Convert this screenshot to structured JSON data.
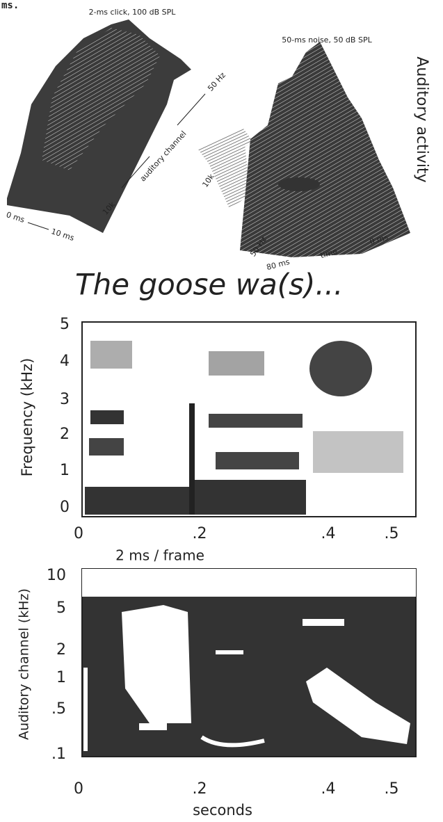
{
  "header": {
    "fragment": "ms."
  },
  "click_plot": {
    "title": "2-ms click, 100 dB SPL",
    "channel_label": "auditory channel",
    "channel_high": "50 Hz",
    "channel_low": "10k",
    "time_start": "0 ms",
    "time_end": "10 ms"
  },
  "noise_plot": {
    "title": "50-ms noise, 50 dB SPL",
    "channel_low": "10k",
    "channel_high": "50 Hz",
    "time_start": "80 ms",
    "time_label": "time",
    "time_end": "0 ms"
  },
  "side_label": "Auditory activity",
  "utterance": "The goose wa(s)...",
  "spectrogram": {
    "y_label": "Frequency (kHz)",
    "y_ticks": [
      "5",
      "4",
      "3",
      "2",
      "1",
      "0"
    ],
    "x_ticks": [
      "0",
      ".2",
      ".4",
      ".5"
    ]
  },
  "frame_note": "2 ms / frame",
  "cochleagram": {
    "y_label": "Auditory channel (kHz)",
    "y_ticks": [
      "10",
      "5",
      "2",
      "1",
      ".5",
      ".1"
    ],
    "x_ticks": [
      "0",
      ".2",
      ".4",
      ".5"
    ],
    "x_label": "seconds"
  }
}
